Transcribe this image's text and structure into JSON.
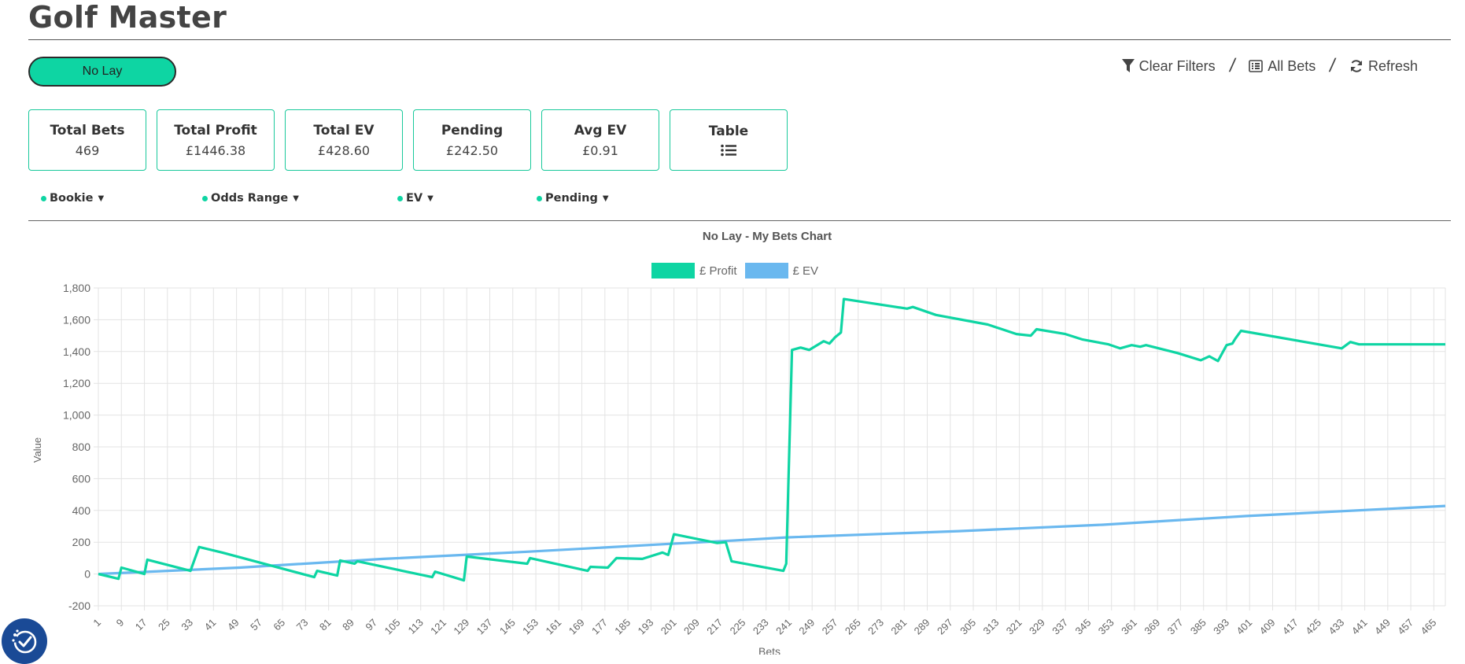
{
  "page": {
    "title": "Golf Master"
  },
  "mode_button": {
    "label": "No Lay"
  },
  "toolbar": {
    "clear_filters": "Clear Filters",
    "all_bets": "All Bets",
    "refresh": "Refresh",
    "separator": "/"
  },
  "stats": [
    {
      "label": "Total Bets",
      "value": "469"
    },
    {
      "label": "Total Profit",
      "value": "£1446.38"
    },
    {
      "label": "Total EV",
      "value": "£428.60"
    },
    {
      "label": "Pending",
      "value": "£242.50"
    },
    {
      "label": "Avg EV",
      "value": "£0.91"
    },
    {
      "label": "Table",
      "icon": "list-icon"
    }
  ],
  "filters": [
    {
      "label": "Bookie"
    },
    {
      "label": "Odds Range"
    },
    {
      "label": "EV"
    },
    {
      "label": "Pending"
    }
  ],
  "colors": {
    "accent": "#0ed5a3",
    "profit": "#0ed5a3",
    "ev": "#6ab8ef",
    "a11y": "#1a4a96"
  },
  "chart_data": {
    "type": "line",
    "title": "No Lay - My Bets Chart",
    "xlabel": "Bets",
    "ylabel": "Value",
    "ylim": [
      -200,
      1800
    ],
    "xlim": [
      1,
      469
    ],
    "yticks": [
      -200,
      0,
      200,
      400,
      600,
      800,
      1000,
      1200,
      1400,
      1600,
      1800
    ],
    "xtick_start": 1,
    "xtick_step": 8,
    "grid": true,
    "legend_position": "top-center",
    "series": [
      {
        "name": "£ Profit",
        "color": "#0ed5a3",
        "points": [
          [
            1,
            0
          ],
          [
            8,
            -30
          ],
          [
            9,
            40
          ],
          [
            17,
            0
          ],
          [
            18,
            90
          ],
          [
            33,
            20
          ],
          [
            36,
            170
          ],
          [
            44,
            135
          ],
          [
            76,
            -20
          ],
          [
            77,
            20
          ],
          [
            84,
            -10
          ],
          [
            85,
            85
          ],
          [
            90,
            65
          ],
          [
            91,
            80
          ],
          [
            117,
            -20
          ],
          [
            118,
            15
          ],
          [
            128,
            -40
          ],
          [
            129,
            110
          ],
          [
            150,
            65
          ],
          [
            151,
            100
          ],
          [
            171,
            20
          ],
          [
            172,
            45
          ],
          [
            178,
            40
          ],
          [
            181,
            100
          ],
          [
            190,
            95
          ],
          [
            197,
            135
          ],
          [
            199,
            120
          ],
          [
            201,
            250
          ],
          [
            216,
            195
          ],
          [
            219,
            200
          ],
          [
            221,
            80
          ],
          [
            239,
            20
          ],
          [
            240,
            65
          ],
          [
            242,
            1410
          ],
          [
            245,
            1425
          ],
          [
            248,
            1410
          ],
          [
            253,
            1465
          ],
          [
            255,
            1450
          ],
          [
            257,
            1490
          ],
          [
            259,
            1520
          ],
          [
            260,
            1730
          ],
          [
            282,
            1670
          ],
          [
            284,
            1680
          ],
          [
            292,
            1630
          ],
          [
            310,
            1570
          ],
          [
            320,
            1510
          ],
          [
            325,
            1500
          ],
          [
            327,
            1540
          ],
          [
            337,
            1510
          ],
          [
            343,
            1475
          ],
          [
            352,
            1445
          ],
          [
            356,
            1420
          ],
          [
            360,
            1440
          ],
          [
            363,
            1430
          ],
          [
            365,
            1440
          ],
          [
            376,
            1390
          ],
          [
            384,
            1345
          ],
          [
            387,
            1370
          ],
          [
            390,
            1340
          ],
          [
            393,
            1440
          ],
          [
            395,
            1450
          ],
          [
            396,
            1480
          ],
          [
            398,
            1530
          ],
          [
            433,
            1420
          ],
          [
            436,
            1460
          ],
          [
            439,
            1445
          ],
          [
            469,
            1445
          ]
        ]
      },
      {
        "name": "£ EV",
        "color": "#6ab8ef",
        "points": [
          [
            1,
            0
          ],
          [
            50,
            40
          ],
          [
            100,
            95
          ],
          [
            150,
            140
          ],
          [
            200,
            190
          ],
          [
            221,
            210
          ],
          [
            240,
            230
          ],
          [
            300,
            270
          ],
          [
            350,
            310
          ],
          [
            400,
            365
          ],
          [
            469,
            428
          ]
        ]
      }
    ]
  }
}
